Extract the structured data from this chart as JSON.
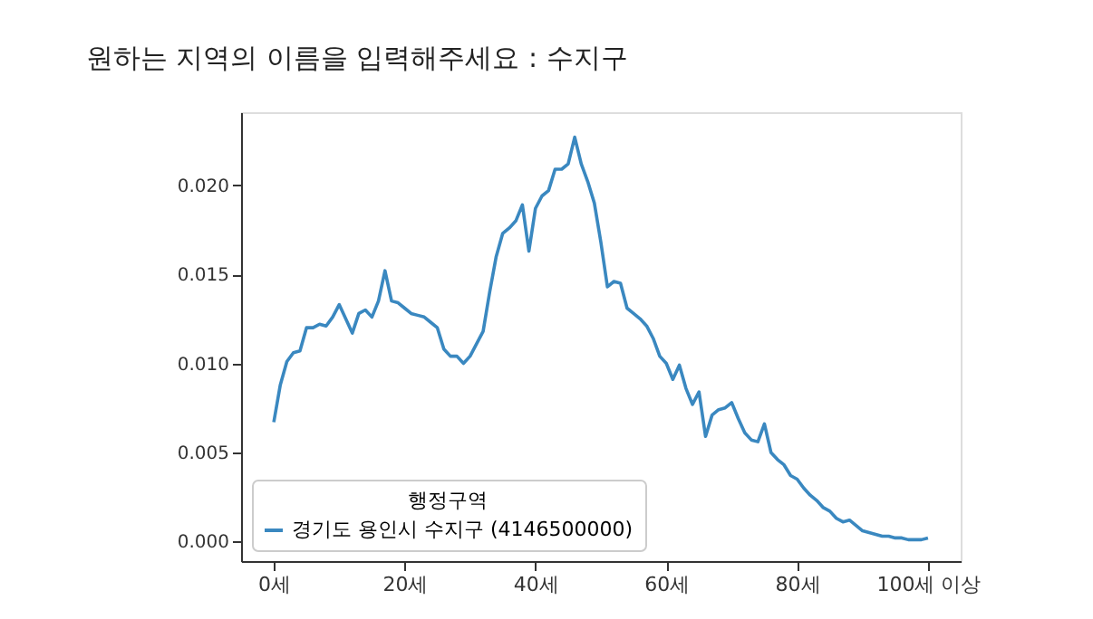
{
  "chart_data": {
    "type": "line",
    "title": "원하는 지역의 이름을 입력해주세요 : 수지구",
    "x": [
      0,
      1,
      2,
      3,
      4,
      5,
      6,
      7,
      8,
      9,
      10,
      11,
      12,
      13,
      14,
      15,
      16,
      17,
      18,
      19,
      20,
      21,
      22,
      23,
      24,
      25,
      26,
      27,
      28,
      29,
      30,
      31,
      32,
      33,
      34,
      35,
      36,
      37,
      38,
      39,
      40,
      41,
      42,
      43,
      44,
      45,
      46,
      47,
      48,
      49,
      50,
      51,
      52,
      53,
      54,
      55,
      56,
      57,
      58,
      59,
      60,
      61,
      62,
      63,
      64,
      65,
      66,
      67,
      68,
      69,
      70,
      71,
      72,
      73,
      74,
      75,
      76,
      77,
      78,
      79,
      80,
      81,
      82,
      83,
      84,
      85,
      86,
      87,
      88,
      89,
      90,
      91,
      92,
      93,
      94,
      95,
      96,
      97,
      98,
      99,
      100
    ],
    "series": [
      {
        "name": "경기도 용인시 수지구 (4146500000)",
        "color": "#3a88c0",
        "values": [
          0.0067,
          0.0088,
          0.0101,
          0.0106,
          0.0107,
          0.012,
          0.012,
          0.0122,
          0.0121,
          0.0126,
          0.0133,
          0.0125,
          0.0117,
          0.0128,
          0.013,
          0.0126,
          0.0135,
          0.0152,
          0.0135,
          0.0134,
          0.0131,
          0.0128,
          0.0127,
          0.0126,
          0.0123,
          0.012,
          0.0108,
          0.0104,
          0.0104,
          0.01,
          0.0104,
          0.0111,
          0.0118,
          0.014,
          0.016,
          0.0173,
          0.0176,
          0.018,
          0.0189,
          0.0163,
          0.0187,
          0.0194,
          0.0197,
          0.0209,
          0.0209,
          0.0212,
          0.0227,
          0.0212,
          0.0202,
          0.019,
          0.0168,
          0.0143,
          0.0146,
          0.0145,
          0.0131,
          0.0128,
          0.0125,
          0.0121,
          0.0114,
          0.0104,
          0.01,
          0.0091,
          0.0099,
          0.0086,
          0.0077,
          0.0084,
          0.0059,
          0.0071,
          0.0074,
          0.0075,
          0.0078,
          0.0069,
          0.0061,
          0.0057,
          0.0056,
          0.0066,
          0.005,
          0.0046,
          0.0043,
          0.0037,
          0.0035,
          0.003,
          0.0026,
          0.0023,
          0.0019,
          0.0017,
          0.0013,
          0.0011,
          0.0012,
          0.0009,
          0.0006,
          0.0005,
          0.0004,
          0.0003,
          0.0003,
          0.0002,
          0.0002,
          0.0001,
          0.0001,
          0.0001,
          0.0002
        ]
      }
    ],
    "legend_title": "행정구역",
    "legend": "bottom left",
    "xlim": [
      -5,
      105
    ],
    "xticks": [
      {
        "value": 0,
        "label": "0세"
      },
      {
        "value": 20,
        "label": "20세"
      },
      {
        "value": 40,
        "label": "40세"
      },
      {
        "value": 60,
        "label": "60세"
      },
      {
        "value": 80,
        "label": "80세"
      },
      {
        "value": 100,
        "label": "100세 이상"
      }
    ],
    "ylim": [
      -0.0011,
      0.0241
    ],
    "yticks": [
      {
        "value": 0,
        "label": "0.000"
      },
      {
        "value": 0.005,
        "label": "0.005"
      },
      {
        "value": 0.01,
        "label": "0.010"
      },
      {
        "value": 0.015,
        "label": "0.015"
      },
      {
        "value": 0.02,
        "label": "0.020"
      }
    ],
    "grid": false,
    "line_style": "solid"
  }
}
